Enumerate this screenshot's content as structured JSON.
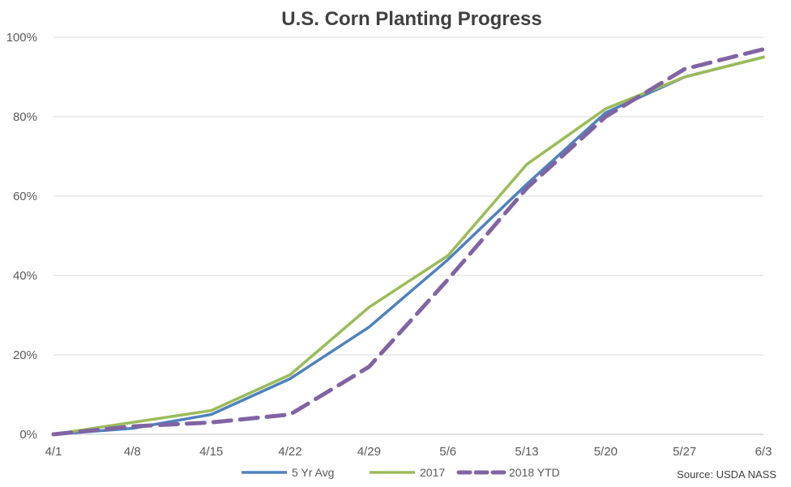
{
  "chart_data": {
    "type": "line",
    "title": "U.S. Corn Planting Progress",
    "xlabel": "",
    "ylabel": "",
    "categories": [
      "4/1",
      "4/8",
      "4/15",
      "4/22",
      "4/29",
      "5/6",
      "5/13",
      "5/20",
      "5/27",
      "6/3"
    ],
    "ylim": [
      0,
      100
    ],
    "yticks": [
      0,
      20,
      40,
      60,
      80,
      100
    ],
    "ytick_labels": [
      "0%",
      "20%",
      "40%",
      "60%",
      "80%",
      "100%"
    ],
    "grid": true,
    "legend_position": "bottom",
    "series": [
      {
        "name": "5 Yr Avg",
        "color": "#4F81BD",
        "style": "solid",
        "values": [
          0,
          1.5,
          5,
          14,
          27,
          44,
          63,
          81,
          90,
          95
        ]
      },
      {
        "name": "2017",
        "color": "#9BBB59",
        "style": "solid",
        "values": [
          0,
          3,
          6,
          15,
          32,
          45,
          68,
          82,
          90,
          95
        ]
      },
      {
        "name": "2018 YTD",
        "color": "#8064A2",
        "style": "dashed",
        "values": [
          0,
          2,
          3,
          5,
          17,
          39,
          62,
          80,
          92,
          97
        ]
      }
    ],
    "source": "Source: USDA NASS"
  }
}
